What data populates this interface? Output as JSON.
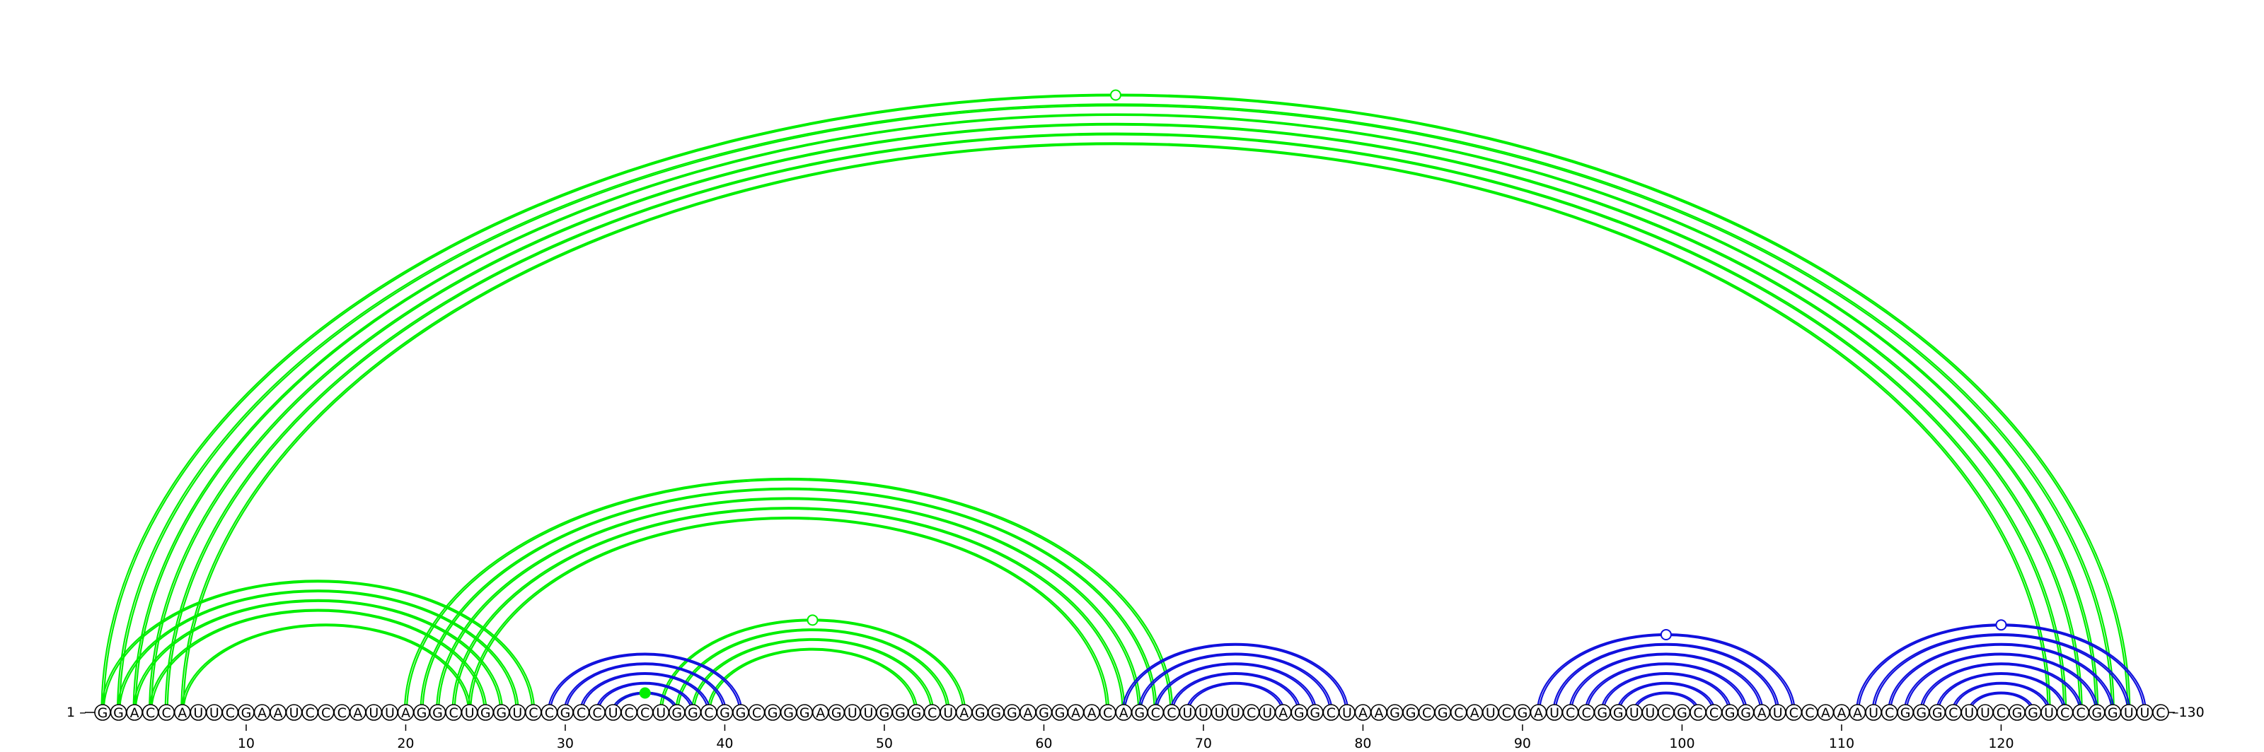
{
  "sequence": "GGACCAUUCGAAUCCCAUUAGGCUGGUCCGCCUCCUGGCGGCGGGAGUUGGGCUAGGGAGGAACAGCCUUUUCUAGGCUAAGGCGCAUCGAUCCGGUUCGCCGGAUCCAAAUCGGGCUUCGGUCCGGUUC",
  "start_label": "1",
  "end_label": "130",
  "tick_labels": [
    "10",
    "20",
    "30",
    "40",
    "50",
    "60",
    "70",
    "80",
    "90",
    "100",
    "110",
    "120"
  ],
  "colors": {
    "green": "#00ee00",
    "blue": "#1010dd"
  },
  "chart_data": {
    "type": "arc-diagram",
    "length": 130,
    "helices": [
      {
        "color": "green",
        "pairs": [
          [
            1,
            128
          ],
          [
            2,
            127
          ],
          [
            3,
            126
          ],
          [
            4,
            125
          ],
          [
            5,
            124
          ],
          [
            6,
            123
          ]
        ],
        "above_axis": true,
        "marker": "hollow"
      },
      {
        "color": "green",
        "pairs": [
          [
            1,
            28
          ],
          [
            2,
            27
          ],
          [
            3,
            26
          ],
          [
            4,
            25
          ],
          [
            6,
            24
          ]
        ],
        "above_axis": true
      },
      {
        "color": "green",
        "pairs": [
          [
            20,
            68
          ],
          [
            21,
            67
          ],
          [
            22,
            66
          ],
          [
            23,
            65
          ],
          [
            24,
            64
          ]
        ],
        "above_axis": true
      },
      {
        "color": "green",
        "pairs": [
          [
            36,
            55
          ],
          [
            37,
            54
          ],
          [
            38,
            53
          ],
          [
            39,
            52
          ]
        ],
        "above_axis": true,
        "marker": "hollow"
      },
      {
        "color": "green",
        "pairs": [
          [
            33,
            37
          ]
        ],
        "above_axis": true,
        "marker": "filled"
      },
      {
        "color": "blue",
        "pairs": [
          [
            29,
            41
          ],
          [
            30,
            40
          ],
          [
            31,
            39
          ],
          [
            32,
            38
          ],
          [
            33,
            37
          ]
        ],
        "above_axis": true
      },
      {
        "color": "blue",
        "pairs": [
          [
            65,
            79
          ],
          [
            66,
            78
          ],
          [
            67,
            77
          ],
          [
            68,
            76
          ],
          [
            69,
            75
          ]
        ],
        "above_axis": true
      },
      {
        "color": "blue",
        "pairs": [
          [
            91,
            107
          ],
          [
            92,
            106
          ],
          [
            93,
            105
          ],
          [
            94,
            104
          ],
          [
            95,
            103
          ],
          [
            96,
            102
          ],
          [
            97,
            101
          ]
        ],
        "above_axis": true,
        "marker": "hollow"
      },
      {
        "color": "blue",
        "pairs": [
          [
            111,
            129
          ],
          [
            112,
            128
          ],
          [
            113,
            127
          ],
          [
            114,
            126
          ],
          [
            115,
            125
          ],
          [
            116,
            124
          ],
          [
            117,
            123
          ],
          [
            118,
            122
          ]
        ],
        "above_axis": true,
        "marker": "hollow"
      }
    ]
  }
}
